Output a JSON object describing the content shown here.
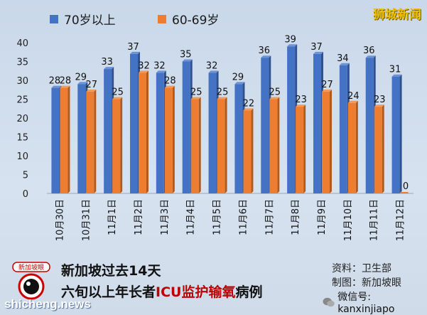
{
  "legend": {
    "series_a_label": "70岁以上",
    "series_b_label": "60-69岁"
  },
  "brand": "狮城新闻",
  "title": {
    "line1": "新加坡过去14天",
    "line2_prefix": "六旬以上年长者",
    "line2_highlight": "ICU监护输氧",
    "line2_suffix": "病例"
  },
  "source": {
    "line1": "资料：卫生部",
    "line2": "制图：新加坡眼"
  },
  "wechat": "微信号: kanxinjiapo",
  "watermark": "shicheng.news",
  "logo_text": "新加坡眼",
  "colors": {
    "series_a": "#4472c4",
    "series_b": "#ed7d31"
  },
  "chart_data": {
    "type": "bar",
    "categories": [
      "10月30日",
      "10月31日",
      "11月1日",
      "11月2日",
      "11月3日",
      "11月4日",
      "11月5日",
      "11月6日",
      "11月7日",
      "11月8日",
      "11月9日",
      "11月10日",
      "11月11日",
      "11月12日"
    ],
    "series": [
      {
        "name": "70岁以上",
        "values": [
          28,
          29,
          33,
          37,
          32,
          35,
          32,
          29,
          36,
          39,
          37,
          34,
          36,
          31
        ]
      },
      {
        "name": "60-69岁",
        "values": [
          28,
          27,
          25,
          32,
          28,
          25,
          25,
          22,
          25,
          23,
          27,
          24,
          23,
          0
        ]
      }
    ],
    "ylim": [
      0,
      40
    ],
    "yticks": [
      0,
      5,
      10,
      15,
      20,
      25,
      30,
      35,
      40
    ],
    "grid": false,
    "legend_position": "top-left"
  }
}
